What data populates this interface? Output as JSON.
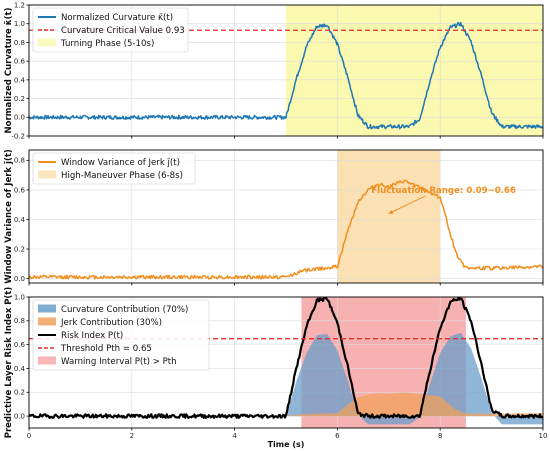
{
  "chart_data": [
    {
      "type": "line",
      "ylabel": "Normalized Curvature κ̄(t)",
      "xlim": [
        0,
        10
      ],
      "ylim": [
        -0.2,
        1.2
      ],
      "xticks": [
        0,
        2,
        4,
        6,
        8,
        10
      ],
      "yticks": [
        -0.2,
        0.0,
        0.2,
        0.4,
        0.6,
        0.8,
        1.0,
        1.2
      ],
      "ytick_labels": [
        "-0.2",
        "0.0",
        "0.2",
        "0.4",
        "0.6",
        "0.8",
        "1.0",
        "1.2"
      ],
      "grid": true,
      "legend": "top-left",
      "series": [
        {
          "name": "Normalized Curvature κ̄(t)",
          "color": "#1f77b4",
          "x": [
            0,
            5.0,
            5.2,
            5.4,
            5.6,
            5.8,
            6.0,
            6.2,
            6.4,
            6.6,
            6.8,
            7.0,
            7.2,
            7.4,
            7.6,
            7.8,
            8.0,
            8.2,
            8.4,
            8.6,
            8.8,
            9.0,
            9.2,
            9.4,
            9.6,
            9.8,
            10.0
          ],
          "values": [
            0.0,
            0.0,
            0.41,
            0.76,
            0.97,
            0.99,
            0.78,
            0.43,
            0.02,
            -0.1,
            -0.1,
            -0.1,
            -0.1,
            -0.1,
            -0.02,
            0.39,
            0.75,
            0.96,
            1.0,
            0.81,
            0.45,
            0.05,
            -0.1,
            -0.1,
            -0.1,
            -0.1,
            -0.1
          ],
          "noise_amplitude": 0.02
        },
        {
          "name": "Curvature Critical Value 0.93",
          "color": "#e03030",
          "style": "dashed",
          "y": 0.93
        }
      ],
      "shaded": [
        {
          "name": "Turning Phase (5-10s)",
          "color": "#fbf8b0",
          "x": [
            5,
            10
          ]
        }
      ]
    },
    {
      "type": "line",
      "ylabel": "Window Variance of Jerk j̄(t)",
      "xlim": [
        0,
        10
      ],
      "ylim": [
        -0.03,
        0.87
      ],
      "yticks": [
        0.0,
        0.2,
        0.4,
        0.6,
        0.8
      ],
      "ytick_labels": [
        "0.0",
        "0.2",
        "0.4",
        "0.6",
        "0.8"
      ],
      "grid": true,
      "legend": "top-left",
      "series": [
        {
          "name": "Window Variance of Jerk j̄(t)",
          "color": "#f28e1c",
          "x": [
            0,
            5.0,
            5.3,
            5.7,
            6.0,
            6.2,
            6.4,
            6.6,
            6.8,
            7.0,
            7.3,
            7.5,
            7.7,
            8.0,
            8.2,
            8.3,
            8.45,
            8.6,
            9.0,
            10.0
          ],
          "values": [
            0.01,
            0.01,
            0.05,
            0.07,
            0.08,
            0.32,
            0.52,
            0.6,
            0.64,
            0.62,
            0.66,
            0.63,
            0.6,
            0.55,
            0.3,
            0.18,
            0.09,
            0.07,
            0.07,
            0.08
          ],
          "noise_amplitude": 0.012
        }
      ],
      "shaded": [
        {
          "name": "High-Maneuver Phase (6-8s)",
          "color": "#fae0b2",
          "x": [
            6,
            8
          ]
        }
      ],
      "annotation": {
        "text": "Fluctuation Range: 0.09~0.66",
        "x": 7.95,
        "y": 0.6,
        "arrow_to": [
          7.0,
          0.44
        ]
      }
    },
    {
      "type": "line",
      "ylabel": "Predictive Layer Risk Index P(t)",
      "xlabel": "Time (s)",
      "xlim": [
        0,
        10
      ],
      "ylim": [
        -0.1,
        1.0
      ],
      "xticks": [
        0,
        2,
        4,
        6,
        8,
        10
      ],
      "xtick_labels": [
        "0",
        "2",
        "4",
        "6",
        "8",
        "10"
      ],
      "yticks": [
        0.0,
        0.2,
        0.4,
        0.6,
        0.8,
        1.0
      ],
      "ytick_labels": [
        "0.0",
        "0.2",
        "0.4",
        "0.6",
        "0.8",
        "1.0"
      ],
      "grid": true,
      "legend": "top-left",
      "series": [
        {
          "name": "Curvature Contribution (70%)",
          "color": "#6a9ec9",
          "type": "area",
          "x": [
            0,
            5.0,
            5.2,
            5.4,
            5.6,
            5.8,
            6.0,
            6.2,
            6.4,
            6.6,
            6.8,
            7.0,
            7.2,
            7.4,
            7.6,
            7.8,
            8.0,
            8.2,
            8.4,
            8.6,
            8.8,
            9.0,
            9.2,
            9.4,
            9.6,
            9.8,
            10.0
          ],
          "values": [
            0.0,
            0.0,
            0.29,
            0.53,
            0.68,
            0.69,
            0.55,
            0.3,
            0.01,
            -0.07,
            -0.07,
            -0.07,
            -0.07,
            -0.07,
            -0.01,
            0.27,
            0.53,
            0.67,
            0.7,
            0.57,
            0.32,
            0.03,
            -0.07,
            -0.07,
            -0.07,
            -0.07,
            -0.07
          ]
        },
        {
          "name": "Jerk Contribution (30%)",
          "color": "#f0a05c",
          "type": "area",
          "x": [
            0,
            5.0,
            5.3,
            5.7,
            6.0,
            6.2,
            6.4,
            6.6,
            6.8,
            7.0,
            7.3,
            7.5,
            7.7,
            8.0,
            8.2,
            8.3,
            8.45,
            8.6,
            9.0,
            10.0
          ],
          "values": [
            0.003,
            0.003,
            0.015,
            0.021,
            0.024,
            0.096,
            0.156,
            0.18,
            0.192,
            0.186,
            0.198,
            0.189,
            0.18,
            0.165,
            0.09,
            0.054,
            0.027,
            0.021,
            0.021,
            0.024
          ]
        },
        {
          "name": "Risk Index P(t)",
          "color": "#000000",
          "x": [
            0,
            5.0,
            5.2,
            5.4,
            5.6,
            5.8,
            6.0,
            6.2,
            6.4,
            6.6,
            6.8,
            7.0,
            7.2,
            7.4,
            7.6,
            7.8,
            8.0,
            8.2,
            8.4,
            8.6,
            8.8,
            9.0,
            9.2,
            9.4,
            9.6,
            9.8,
            10.0
          ],
          "values": [
            0.0,
            0.0,
            0.4,
            0.75,
            0.97,
            0.99,
            0.78,
            0.42,
            0.02,
            0.0,
            0.0,
            0.0,
            0.0,
            0.0,
            0.0,
            0.38,
            0.74,
            0.96,
            0.99,
            0.8,
            0.44,
            0.05,
            0.0,
            0.0,
            0.0,
            0.0,
            0.0
          ],
          "noise_amplitude": 0.015
        },
        {
          "name": "Threshold Pth = 0.65",
          "color": "#e03030",
          "style": "dashed",
          "y": 0.65
        }
      ],
      "shaded": [
        {
          "name": "Warning Interval P(t) > Pth",
          "color": "#f7a9a9",
          "x": [
            5.3,
            8.5
          ]
        }
      ]
    }
  ]
}
